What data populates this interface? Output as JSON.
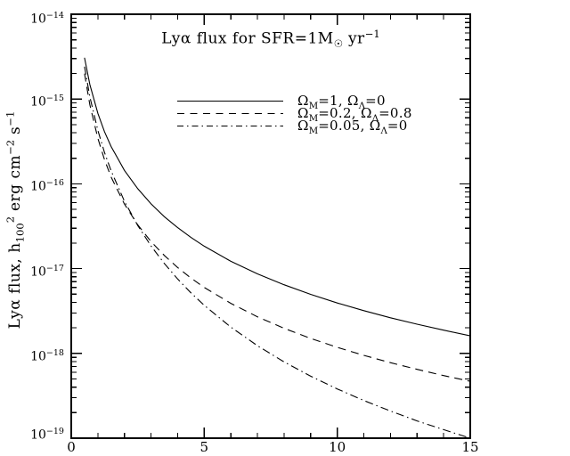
{
  "title_text": "Lyα flux for SFR=1M☉ yr−1",
  "title_parts": [
    {
      "t": "Lyα flux for SFR=1M"
    },
    {
      "t": "☉",
      "s": "sub"
    },
    {
      "t": " yr"
    },
    {
      "t": "−1",
      "s": "sup"
    }
  ],
  "axes": {
    "ylabel_text": "Lyα flux, h100² erg cm−2 s−1",
    "ylabel_parts": [
      {
        "t": "Lyα flux, h"
      },
      {
        "t": "100",
        "s": "sub"
      },
      {
        "t": "2",
        "s": "sup"
      },
      {
        "t": " erg cm"
      },
      {
        "t": "−2",
        "s": "sup"
      },
      {
        "t": " s"
      },
      {
        "t": "−1",
        "s": "sup"
      }
    ],
    "x_tick_values": [
      0,
      5,
      10,
      15
    ],
    "x_tick_labels": [
      "0",
      "5",
      "10",
      "15"
    ],
    "x_minor_interval": 1,
    "y_tick_exponents": [
      -14,
      -15,
      -16,
      -17,
      -18,
      -19
    ],
    "y_tick_labels": [
      {
        "base": "10",
        "exp": "−14"
      },
      {
        "base": "10",
        "exp": "−15"
      },
      {
        "base": "10",
        "exp": "−16"
      },
      {
        "base": "10",
        "exp": "−17"
      },
      {
        "base": "10",
        "exp": "−18"
      },
      {
        "base": "10",
        "exp": "−19"
      }
    ]
  },
  "legend": {
    "entries": [
      {
        "style": "solid",
        "label_text": "ΩM=1, ΩΛ=0",
        "label_parts": [
          {
            "t": "Ω"
          },
          {
            "t": "M",
            "s": "sub"
          },
          {
            "t": "=1, "
          },
          {
            "t": "Ω"
          },
          {
            "t": "Λ",
            "s": "sub"
          },
          {
            "t": "=0"
          }
        ]
      },
      {
        "style": "dashed",
        "label_text": "ΩM=0.2, ΩΛ=0.8",
        "label_parts": [
          {
            "t": "Ω"
          },
          {
            "t": "M",
            "s": "sub"
          },
          {
            "t": "=0.2, "
          },
          {
            "t": "Ω"
          },
          {
            "t": "Λ",
            "s": "sub"
          },
          {
            "t": "=0.8"
          }
        ]
      },
      {
        "style": "dash-dot",
        "label_text": "ΩM=0.05, ΩΛ=0",
        "label_parts": [
          {
            "t": "Ω"
          },
          {
            "t": "M",
            "s": "sub"
          },
          {
            "t": "=0.05, "
          },
          {
            "t": "Ω"
          },
          {
            "t": "Λ",
            "s": "sub"
          },
          {
            "t": "=0"
          }
        ]
      }
    ]
  },
  "chart_data": {
    "type": "line",
    "title": "Lyα flux for SFR=1M☉ yr−1",
    "xlabel": "",
    "ylabel": "Lyα flux, h100² erg cm−2 s−1",
    "x_range": [
      0,
      15
    ],
    "y_range": [
      1e-19,
      1e-14
    ],
    "y_scale": "log",
    "grid": false,
    "legend_position": "upper-center-inside",
    "line_color": "#000000",
    "x": [
      0.5,
      0.7,
      1,
      1.25,
      1.5,
      2,
      2.5,
      3,
      3.5,
      4,
      4.5,
      5,
      6,
      7,
      8,
      9,
      10,
      11,
      12,
      13,
      14,
      15
    ],
    "series": [
      {
        "name": "ΩM=1, ΩΛ=0",
        "line_style": "solid",
        "values": [
          3.07e-15,
          1.48e-15,
          6.77e-16,
          4.13e-16,
          2.75e-16,
          1.44e-16,
          8.75e-17,
          5.8e-17,
          4.1e-17,
          3.04e-17,
          2.33e-17,
          1.84e-17,
          1.22e-17,
          8.68e-18,
          6.45e-18,
          4.97e-18,
          3.93e-18,
          3.19e-18,
          2.63e-18,
          2.21e-18,
          1.88e-18,
          1.61e-18
        ]
      },
      {
        "name": "ΩM=0.2, ΩΛ=0.8",
        "line_style": "dashed",
        "values": [
          1.99e-15,
          8.55e-16,
          3.43e-16,
          1.93e-16,
          1.2e-16,
          5.77e-17,
          3.28e-17,
          2.08e-17,
          1.43e-17,
          1.03e-17,
          7.73e-18,
          6e-18,
          3.89e-18,
          2.7e-18,
          1.98e-18,
          1.5e-18,
          1.18e-18,
          9.48e-19,
          7.77e-19,
          6.48e-19,
          5.48e-19,
          4.69e-19
        ]
      },
      {
        "name": "ΩM=0.05, ΩΛ=0",
        "line_style": "dash-dot",
        "values": [
          2.41e-15,
          1.06e-15,
          4.27e-16,
          2.35e-16,
          1.42e-16,
          6.24e-17,
          3.22e-17,
          1.85e-17,
          1.15e-17,
          7.53e-18,
          5.18e-18,
          3.69e-18,
          2.04e-18,
          1.23e-18,
          7.95e-19,
          5.39e-19,
          3.81e-19,
          2.78e-19,
          2.09e-19,
          1.6e-19,
          1.26e-19,
          1e-19
        ]
      }
    ]
  }
}
